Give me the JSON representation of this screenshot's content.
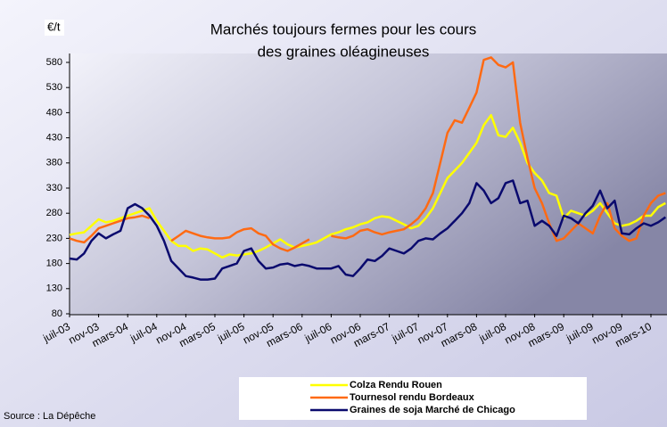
{
  "chart_data": {
    "type": "line",
    "title": [
      "Marchés toujours fermes pour les cours",
      "des graines oléagineuses"
    ],
    "y_unit": "€/t",
    "source": "Source : La Dépêche",
    "categories": [
      "juil-03",
      null,
      null,
      null,
      "nov-03",
      null,
      null,
      null,
      "mars-04",
      null,
      null,
      null,
      "juil-04",
      null,
      null,
      null,
      "nov-04",
      null,
      null,
      null,
      "mars-05",
      null,
      null,
      null,
      "juil-05",
      null,
      null,
      null,
      "nov-05",
      null,
      null,
      null,
      "mars-06",
      null,
      null,
      null,
      "juil-06",
      null,
      null,
      null,
      "nov-06",
      null,
      null,
      null,
      "mars-07",
      null,
      null,
      null,
      "juil-07",
      null,
      null,
      null,
      "nov-07",
      null,
      null,
      null,
      "mars-08",
      null,
      null,
      null,
      "juil-08",
      null,
      null,
      null,
      "nov-08",
      null,
      null,
      null,
      "mars-09",
      null,
      null,
      null,
      "juil-09",
      null,
      null,
      null,
      "nov-09",
      null,
      null,
      null,
      "mars-10",
      null,
      null
    ],
    "series": [
      {
        "name": "Colza Rendu Rouen",
        "color": "#ffff00",
        "values": [
          237,
          240,
          242,
          255,
          268,
          262,
          265,
          270,
          275,
          280,
          285,
          290,
          265,
          245,
          225,
          215,
          215,
          205,
          210,
          208,
          200,
          192,
          198,
          196,
          198,
          200,
          205,
          212,
          220,
          228,
          218,
          212,
          215,
          218,
          222,
          230,
          238,
          242,
          248,
          252,
          258,
          262,
          270,
          274,
          272,
          265,
          258,
          250,
          255,
          270,
          290,
          320,
          350,
          365,
          380,
          400,
          420,
          455,
          475,
          435,
          432,
          450,
          420,
          380,
          360,
          345,
          320,
          315,
          270,
          285,
          280,
          275,
          285,
          300,
          280,
          260,
          255,
          258,
          265,
          275,
          275,
          292,
          300
        ]
      },
      {
        "name": "Tournesol rendu Bordeaux",
        "color": "#ff6a13",
        "values": [
          230,
          225,
          222,
          235,
          250,
          255,
          260,
          265,
          270,
          272,
          275,
          270,
          null,
          null,
          225,
          235,
          245,
          240,
          235,
          232,
          230,
          230,
          232,
          242,
          248,
          250,
          240,
          235,
          218,
          210,
          205,
          212,
          220,
          228,
          null,
          null,
          235,
          232,
          230,
          235,
          245,
          248,
          242,
          238,
          242,
          245,
          248,
          258,
          270,
          290,
          320,
          380,
          440,
          465,
          460,
          490,
          520,
          585,
          590,
          575,
          570,
          580,
          460,
          390,
          330,
          300,
          260,
          225,
          230,
          245,
          260,
          250,
          240,
          275,
          300,
          250,
          235,
          225,
          230,
          275,
          300,
          315,
          320
        ]
      },
      {
        "name": "Graines de soja Marché de Chicago",
        "color": "#0a0a6e",
        "values": [
          190,
          188,
          200,
          225,
          240,
          230,
          238,
          245,
          290,
          298,
          290,
          275,
          255,
          225,
          185,
          170,
          155,
          152,
          148,
          148,
          150,
          170,
          175,
          180,
          205,
          210,
          185,
          170,
          172,
          178,
          180,
          175,
          178,
          175,
          170,
          170,
          170,
          175,
          158,
          155,
          170,
          188,
          185,
          195,
          210,
          205,
          200,
          210,
          225,
          230,
          228,
          240,
          250,
          265,
          280,
          300,
          340,
          325,
          300,
          310,
          340,
          345,
          300,
          305,
          255,
          265,
          255,
          235,
          275,
          270,
          260,
          280,
          295,
          325,
          290,
          305,
          240,
          238,
          250,
          260,
          255,
          262,
          272
        ]
      }
    ],
    "ylim": [
      80,
      580
    ],
    "yticks": [
      80,
      130,
      180,
      230,
      280,
      330,
      380,
      430,
      480,
      530,
      580
    ],
    "grid": false
  }
}
